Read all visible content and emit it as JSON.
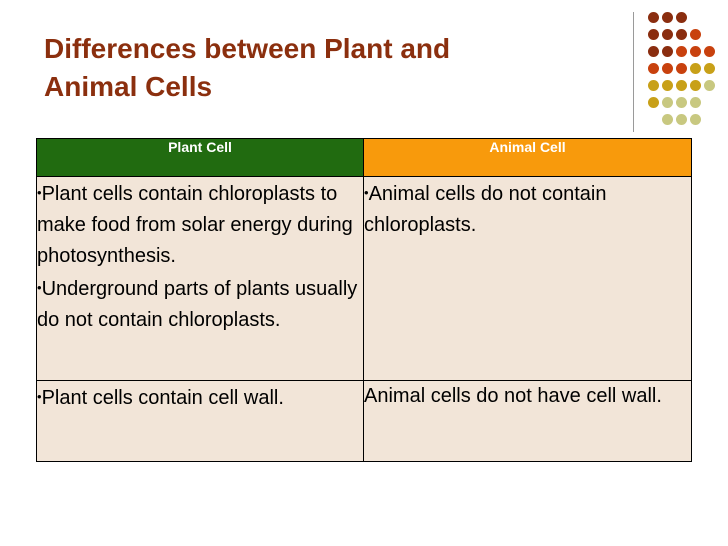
{
  "slide": {
    "title_line1": "Differences between Plant and",
    "title_line2": "Animal Cells"
  },
  "colors": {
    "title": "#8b2f0e",
    "plant_header": "#216b10",
    "animal_header": "#f89a0c",
    "cell_bg": "#f2e5d8"
  },
  "table": {
    "headers": [
      "Plant Cell",
      "Animal Cell"
    ],
    "rows": [
      {
        "plant": [
          "Plant cells contain chloroplasts to make food from solar energy during photosynthesis.",
          "Underground parts of plants usually do not contain chloroplasts."
        ],
        "animal": [
          "Animal cells do not contain chloroplasts."
        ]
      },
      {
        "plant": [
          "Plant cells contain cell wall."
        ],
        "animal_text": "Animal cells do not have cell wall."
      }
    ]
  },
  "bullet_glyph": "•"
}
